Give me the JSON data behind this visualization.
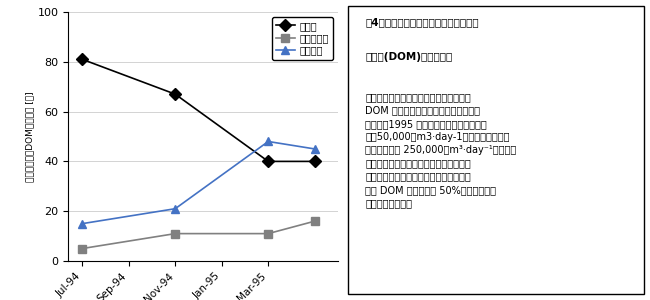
{
  "x_labels": [
    "Jul-94",
    "Sep-94",
    "Nov-94",
    "Jan-95",
    "Mar-95"
  ],
  "x_positions": [
    0,
    1,
    2,
    3,
    4
  ],
  "series_kawagawa": {
    "name": "河川水",
    "data_x": [
      0,
      2,
      4,
      5
    ],
    "data_y": [
      81,
      67,
      40,
      40
    ],
    "color": "#000000",
    "marker": "D",
    "markersize": 6
  },
  "series_gesui": {
    "name": "下水処理水",
    "data_x": [
      0,
      2,
      4,
      5
    ],
    "data_y": [
      5,
      11,
      11,
      16
    ],
    "color": "#808080",
    "marker": "s",
    "markersize": 6
  },
  "series_konaiseisan": {
    "name": "湖内生産",
    "data_x": [
      0,
      2,
      4,
      5
    ],
    "data_y": [
      15,
      21,
      48,
      45
    ],
    "color": "#4472C4",
    "marker": "^",
    "markersize": 6
  },
  "ylabel": "難分解性湖水DOMへの寄与 [％]",
  "ylim": [
    0,
    100
  ],
  "yticks": [
    0,
    20,
    40,
    60,
    80,
    100
  ],
  "text_box_title": "図4　霨ヶ浦湖心における難分解性溶存",
  "text_box_title2": "有機物(DOM)の物質収支",
  "text_box_body": "冬・春期における下水処理水の難分解性\nDOM に対する寄与は無視できないほど\n大きい。1995 年度の下水処理場放流水量\nは約50,000　m3·day-1。この処理場の計\n画処理水量は 250,000　m³·day⁻¹と公表さ\nれている。この計画処理水量が実現する\nと，冬・春での，下水処理水の湖水難分\n解性 DOM への寄与は 50%をこえてしま\nうと予測される。"
}
